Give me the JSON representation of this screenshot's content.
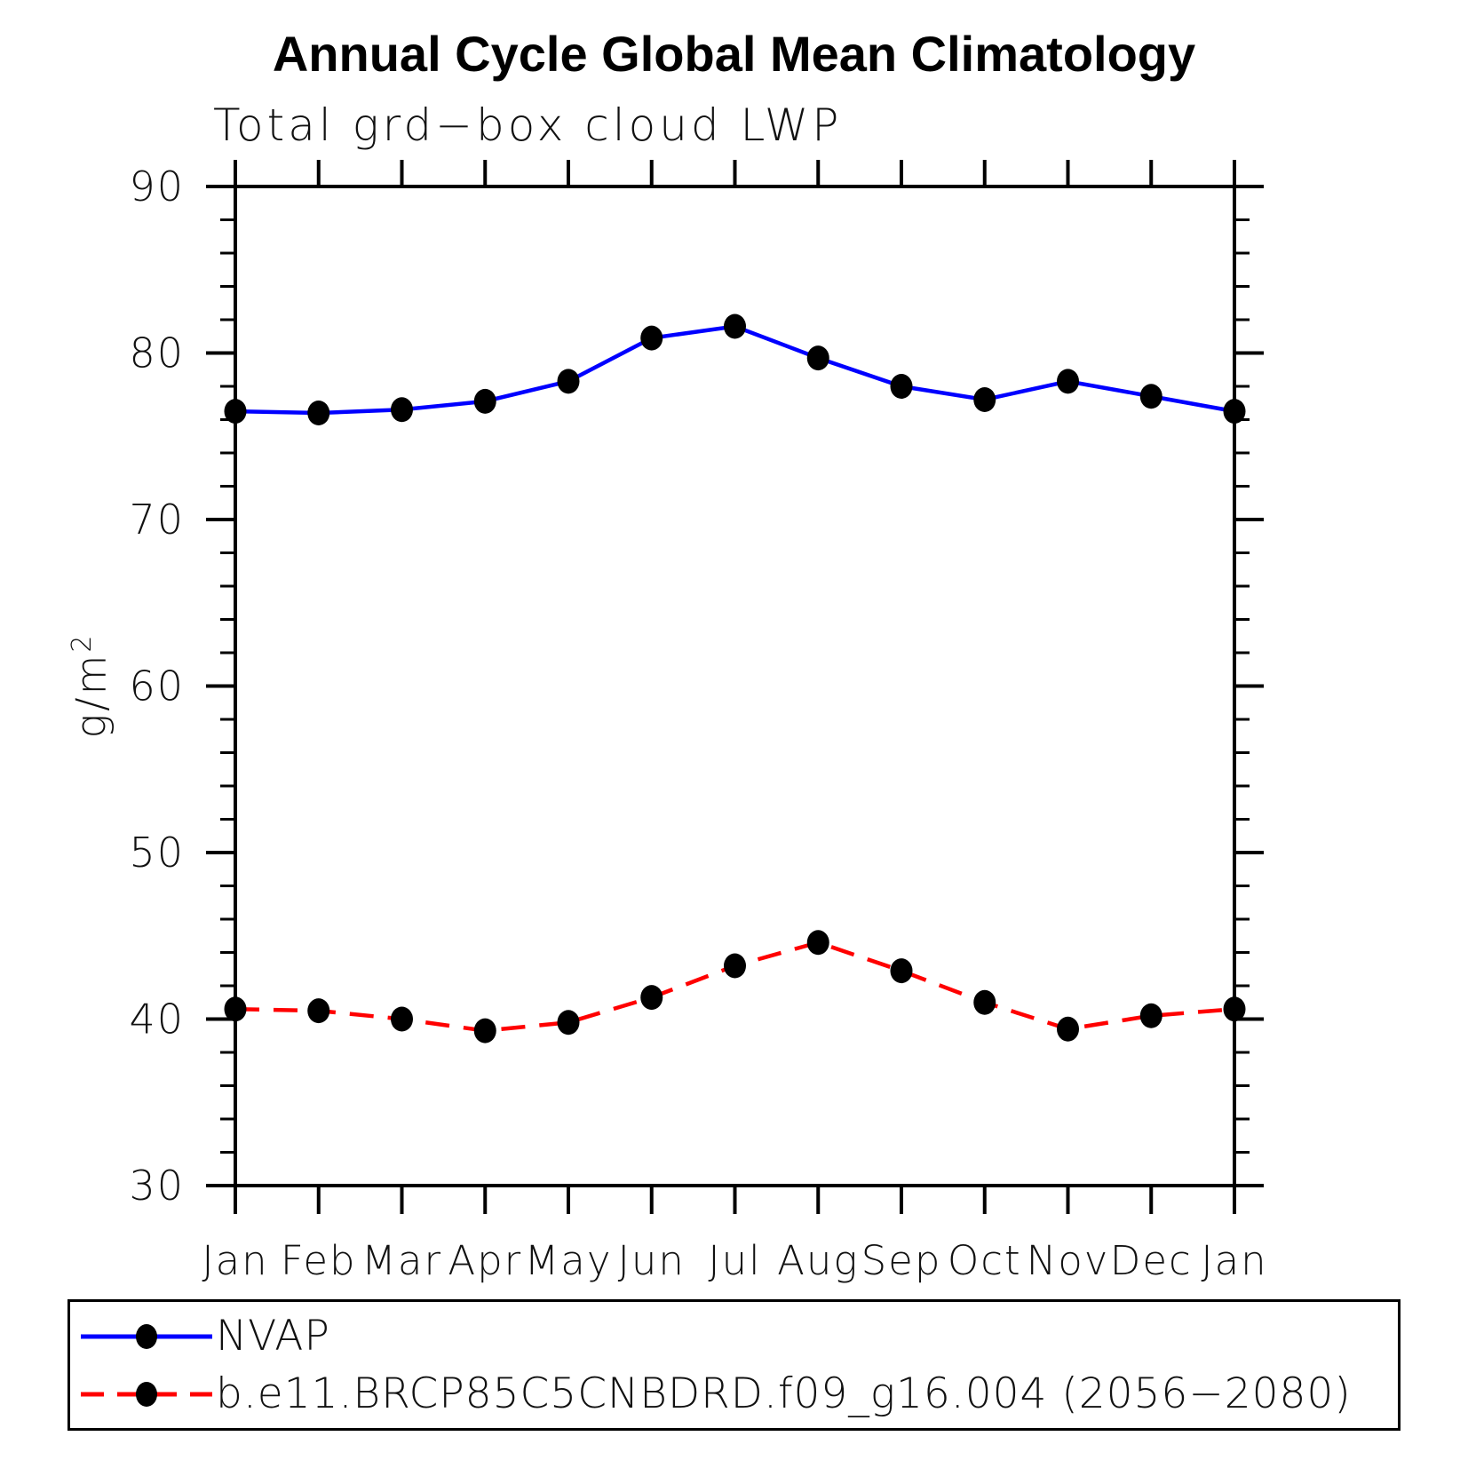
{
  "chart_data": {
    "type": "line",
    "title": "Annual Cycle Global Mean Climatology",
    "subtitle": "Total grd−box cloud LWP",
    "ylabel_base": "g/m",
    "ylabel_sup": "2",
    "categories": [
      "Jan",
      "Feb",
      "Mar",
      "Apr",
      "May",
      "Jun",
      "Jul",
      "Aug",
      "Sep",
      "Oct",
      "Nov",
      "Dec",
      "Jan"
    ],
    "ylim": [
      30,
      90
    ],
    "yticks": [
      30,
      40,
      50,
      60,
      70,
      80,
      90
    ],
    "y_minor_step": 2,
    "grid": false,
    "legend_position": "bottom",
    "marker_color": "#000000",
    "series": [
      {
        "name": "NVAP",
        "color": "#0000ff",
        "style": "solid",
        "values": [
          76.5,
          76.4,
          76.6,
          77.1,
          78.3,
          80.9,
          81.6,
          79.7,
          78.0,
          77.2,
          78.3,
          77.4,
          76.5
        ]
      },
      {
        "name": "b.e11.BRCP85C5CNBDRD.f09_g16.004 (2056−2080)",
        "color": "#ff0000",
        "style": "dashed",
        "values": [
          40.6,
          40.5,
          40.0,
          39.3,
          39.8,
          41.3,
          43.2,
          44.6,
          42.9,
          41.0,
          39.4,
          40.2,
          40.6
        ]
      }
    ]
  }
}
